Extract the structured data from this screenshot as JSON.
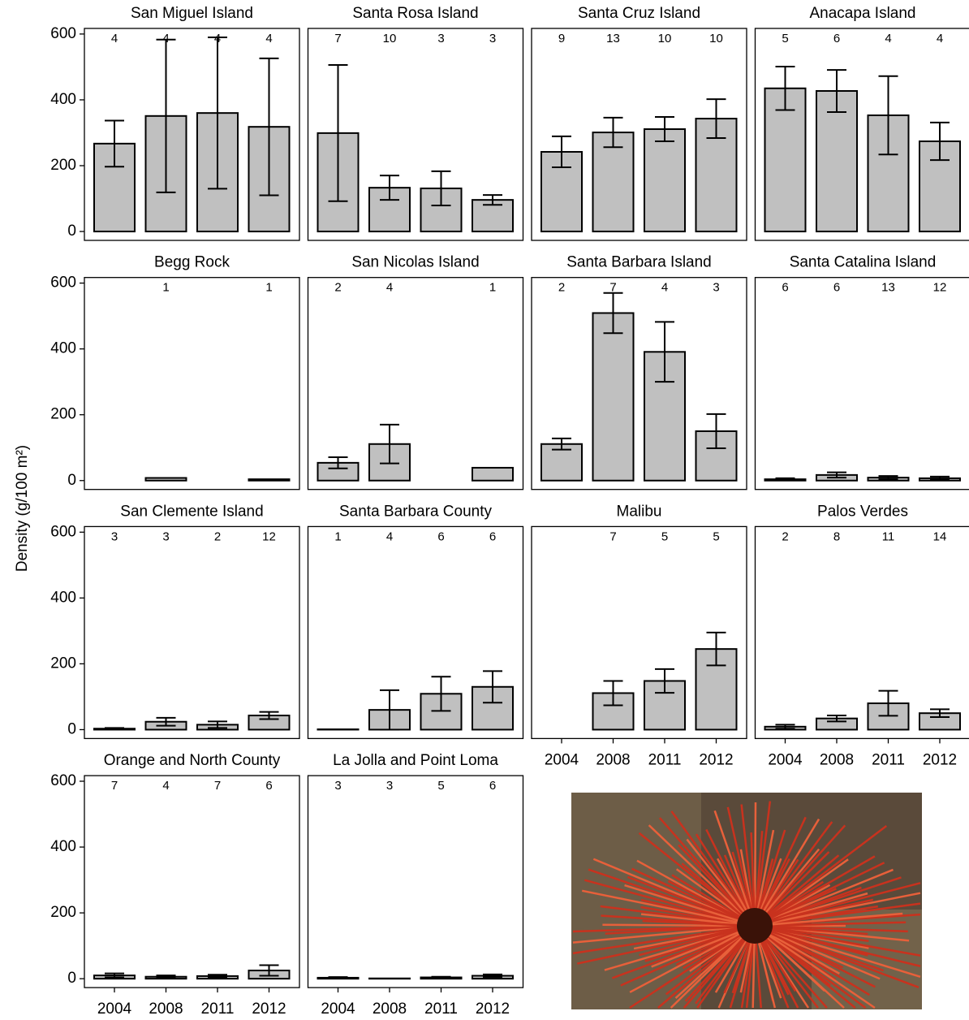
{
  "ylabel": "Density (g/100 m²)",
  "chart_data": [
    {
      "type": "bar",
      "title": "San Miguel Island",
      "categories": [
        null,
        null,
        null,
        null
      ],
      "values": [
        267,
        351,
        360,
        318
      ],
      "errors": [
        70,
        232,
        230,
        208
      ],
      "n": [
        4,
        4,
        4,
        4
      ],
      "color": "#c0c0c0",
      "ylim": [
        -27,
        617
      ],
      "yticks": [
        0,
        200,
        400,
        600
      ]
    },
    {
      "type": "bar",
      "title": "Santa Rosa Island",
      "categories": [
        null,
        null,
        null,
        null
      ],
      "values": [
        299,
        133,
        131,
        96
      ],
      "errors": [
        207,
        37,
        52,
        15
      ],
      "n": [
        7,
        10,
        3,
        3
      ],
      "color": "#c0c0c0",
      "ylim": [
        -27,
        617
      ]
    },
    {
      "type": "bar",
      "title": "Santa Cruz Island",
      "categories": [
        null,
        null,
        null,
        null
      ],
      "values": [
        242,
        301,
        311,
        343
      ],
      "errors": [
        47,
        45,
        37,
        59
      ],
      "n": [
        9,
        13,
        10,
        10
      ],
      "color": "#c0c0c0",
      "ylim": [
        -27,
        617
      ]
    },
    {
      "type": "bar",
      "title": "Anacapa Island",
      "categories": [
        null,
        null,
        null,
        null
      ],
      "values": [
        435,
        427,
        353,
        274
      ],
      "errors": [
        66,
        64,
        119,
        57
      ],
      "n": [
        5,
        6,
        4,
        4
      ],
      "color": "#c0c0c0",
      "ylim": [
        -27,
        617
      ]
    },
    {
      "type": "bar",
      "title": "Begg Rock",
      "categories": [
        null,
        null,
        null,
        null
      ],
      "values": [
        null,
        8,
        null,
        4
      ],
      "errors": [
        null,
        null,
        null,
        null
      ],
      "n": [
        null,
        1,
        null,
        1
      ],
      "color": "#c0c0c0",
      "ylim": [
        -27,
        617
      ],
      "yticks": [
        0,
        200,
        400,
        600
      ]
    },
    {
      "type": "bar",
      "title": "San Nicolas Island",
      "categories": [
        null,
        null,
        null,
        null
      ],
      "values": [
        54,
        111,
        null,
        39
      ],
      "errors": [
        17,
        59,
        null,
        null
      ],
      "n": [
        2,
        4,
        null,
        1
      ],
      "color": "#c0c0c0",
      "ylim": [
        -27,
        617
      ]
    },
    {
      "type": "bar",
      "title": "Santa Barbara Island",
      "categories": [
        null,
        null,
        null,
        null
      ],
      "values": [
        111,
        509,
        391,
        150
      ],
      "errors": [
        17,
        61,
        91,
        52
      ],
      "n": [
        2,
        7,
        4,
        3
      ],
      "color": "#c0c0c0",
      "ylim": [
        -27,
        617
      ]
    },
    {
      "type": "bar",
      "title": "Santa Catalina Island",
      "categories": [
        null,
        null,
        null,
        null
      ],
      "values": [
        4,
        17,
        9,
        7
      ],
      "errors": [
        3,
        8,
        5,
        5
      ],
      "n": [
        6,
        6,
        13,
        12
      ],
      "color": "#c0c0c0",
      "ylim": [
        -27,
        617
      ]
    },
    {
      "type": "bar",
      "title": "San Clemente Island",
      "categories": [
        null,
        null,
        null,
        null
      ],
      "values": [
        3,
        24,
        15,
        43
      ],
      "errors": [
        2,
        12,
        10,
        11
      ],
      "n": [
        3,
        3,
        2,
        12
      ],
      "color": "#c0c0c0",
      "ylim": [
        -27,
        617
      ],
      "yticks": [
        0,
        200,
        400,
        600
      ]
    },
    {
      "type": "bar",
      "title": "Santa Barbara County",
      "categories": [
        null,
        null,
        null,
        null
      ],
      "values": [
        1,
        60,
        109,
        130
      ],
      "errors": [
        null,
        60,
        52,
        48
      ],
      "n": [
        1,
        4,
        6,
        6
      ],
      "color": "#c0c0c0",
      "ylim": [
        -27,
        617
      ]
    },
    {
      "type": "bar",
      "title": "Malibu",
      "categories": [
        "2004",
        "2008",
        "2011",
        "2012"
      ],
      "values": [
        null,
        111,
        148,
        245
      ],
      "errors": [
        null,
        37,
        36,
        50
      ],
      "n": [
        null,
        7,
        5,
        5
      ],
      "color": "#c0c0c0",
      "ylim": [
        -27,
        617
      ]
    },
    {
      "type": "bar",
      "title": "Palos Verdes",
      "categories": [
        "2004",
        "2008",
        "2011",
        "2012"
      ],
      "values": [
        9,
        34,
        80,
        50
      ],
      "errors": [
        6,
        9,
        38,
        12
      ],
      "n": [
        2,
        8,
        11,
        14
      ],
      "color": "#c0c0c0",
      "ylim": [
        -27,
        617
      ]
    },
    {
      "type": "bar",
      "title": "Orange and North County",
      "categories": [
        "2004",
        "2008",
        "2011",
        "2012"
      ],
      "values": [
        10,
        6,
        8,
        25
      ],
      "errors": [
        6,
        4,
        4,
        16
      ],
      "n": [
        7,
        4,
        7,
        6
      ],
      "color": "#c0c0c0",
      "ylim": [
        -27,
        617
      ],
      "yticks": [
        0,
        200,
        400,
        600
      ]
    },
    {
      "type": "bar",
      "title": "La Jolla and Point Loma",
      "categories": [
        "2004",
        "2008",
        "2011",
        "2012"
      ],
      "values": [
        3,
        1,
        4,
        9
      ],
      "errors": [
        2,
        null,
        2,
        4
      ],
      "n": [
        3,
        3,
        5,
        6
      ],
      "color": "#c0c0c0",
      "ylim": [
        -27,
        617
      ]
    }
  ]
}
